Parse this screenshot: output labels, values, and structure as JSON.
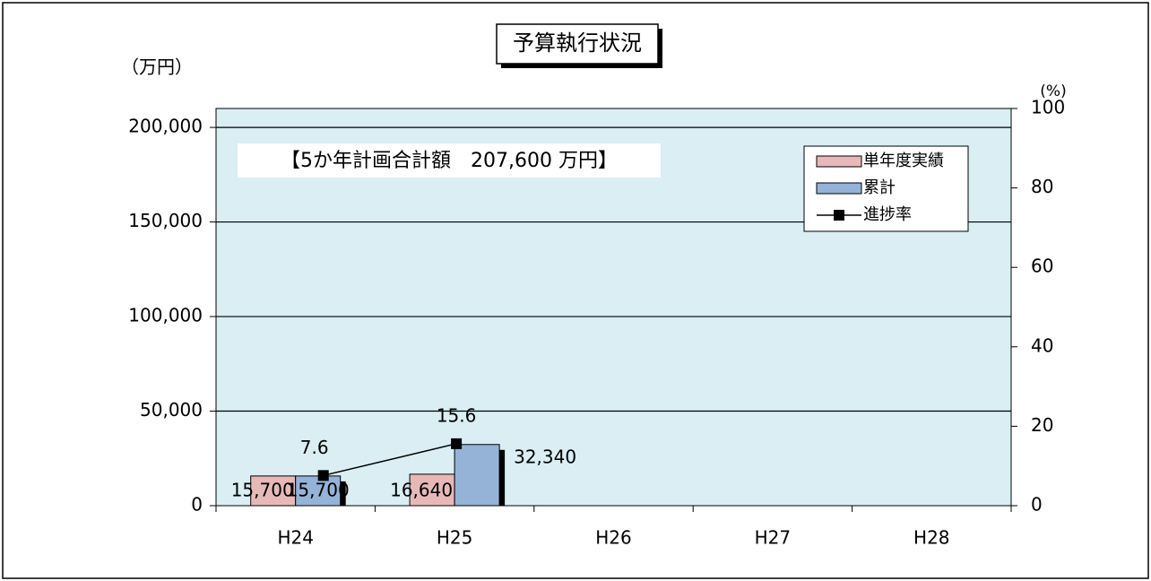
{
  "chart_data": {
    "type": "bar",
    "title": "予算執行状況",
    "y_label": "（万円）",
    "y2_label": "(%)",
    "annotation": "【5か年計画合計額　207,600 万円】",
    "categories": [
      "H24",
      "H25",
      "H26",
      "H27",
      "H28"
    ],
    "series": [
      {
        "name": "単年度実績",
        "color": "#e6b9b8",
        "values": [
          15700,
          16640,
          null,
          null,
          null
        ],
        "value_labels": [
          "15,700",
          "16,640",
          null,
          null,
          null
        ]
      },
      {
        "name": "累計",
        "color": "#95b3d7",
        "values": [
          15700,
          32340,
          null,
          null,
          null
        ],
        "value_labels": [
          "15,700",
          "32,340",
          null,
          null,
          null
        ]
      },
      {
        "name": "進捗率",
        "color": "#000000",
        "type": "line",
        "axis": "y2",
        "values": [
          7.6,
          15.6,
          null,
          null,
          null
        ]
      }
    ],
    "ylim": [
      0,
      210000
    ],
    "yticks": [
      0,
      {
        "value": 50000,
        "label": "50,000"
      },
      {
        "value": 100000,
        "label": "100,000"
      },
      {
        "value": 150000,
        "label": "150,000"
      },
      {
        "value": 200000,
        "label": "200,000"
      }
    ],
    "y2lim": [
      0,
      100
    ],
    "y2ticks": [
      0,
      20,
      40,
      60,
      80,
      100
    ],
    "grid": true,
    "plot_background": "#daeef3",
    "legend": "upper right"
  }
}
